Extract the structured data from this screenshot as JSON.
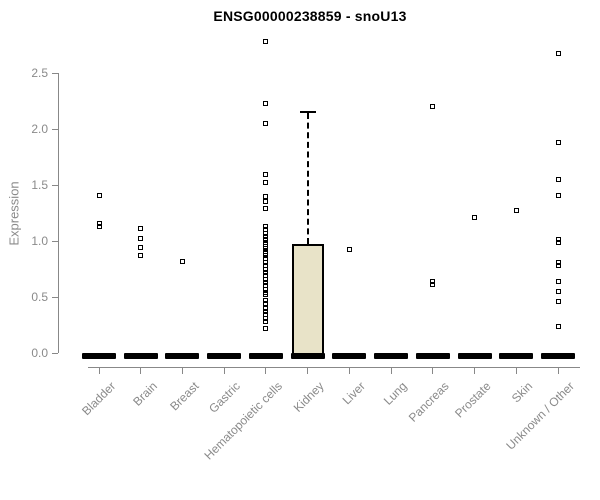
{
  "title": "ENSG00000238859 - snoU13",
  "axes": {
    "y_label": "Expression",
    "y_ticks": [
      "0.0",
      "0.5",
      "1.0",
      "1.5",
      "2.0",
      "2.5"
    ],
    "x_categories": [
      "Bladder",
      "Brain",
      "Breast",
      "Gastric",
      "Hematopoietic cells",
      "Kidney",
      "Liver",
      "Lung",
      "Pancreas",
      "Prostate",
      "Skin",
      "Unknown / Other"
    ]
  },
  "chart_data": {
    "type": "boxplot",
    "title": "ENSG00000238859 - snoU13",
    "xlabel": "",
    "ylabel": "Expression",
    "ylim": [
      0,
      2.8
    ],
    "grid": false,
    "legend": false,
    "categories": [
      "Bladder",
      "Brain",
      "Breast",
      "Gastric",
      "Hematopoietic cells",
      "Kidney",
      "Liver",
      "Lung",
      "Pancreas",
      "Prostate",
      "Skin",
      "Unknown / Other"
    ],
    "series": [
      {
        "category": "Bladder",
        "median": 0,
        "q1": 0,
        "q3": 0,
        "whisker_low": 0,
        "whisker_high": 0,
        "outliers": [
          1.41,
          1.16,
          1.13
        ]
      },
      {
        "category": "Brain",
        "median": 0,
        "q1": 0,
        "q3": 0,
        "whisker_low": 0,
        "whisker_high": 0,
        "outliers": [
          1.11,
          1.02,
          0.94,
          0.87
        ]
      },
      {
        "category": "Breast",
        "median": 0,
        "q1": 0,
        "q3": 0,
        "whisker_low": 0,
        "whisker_high": 0,
        "outliers": [
          0.82
        ]
      },
      {
        "category": "Gastric",
        "median": 0,
        "q1": 0,
        "q3": 0,
        "whisker_low": 0,
        "whisker_high": 0,
        "outliers": []
      },
      {
        "category": "Hematopoietic cells",
        "median": 0,
        "q1": 0,
        "q3": 0,
        "whisker_low": 0,
        "whisker_high": 0,
        "outliers": [
          2.78,
          2.23,
          2.05,
          1.59,
          1.52,
          1.4,
          1.35,
          1.29,
          1.13,
          1.1,
          1.07,
          1.04,
          1.01,
          0.99,
          0.97,
          0.95,
          0.93,
          0.91,
          0.89,
          0.87,
          0.84,
          0.81,
          0.78,
          0.75,
          0.72,
          0.69,
          0.66,
          0.63,
          0.6,
          0.57,
          0.54,
          0.52,
          0.47,
          0.44,
          0.4,
          0.37,
          0.34,
          0.31,
          0.28,
          0.22
        ]
      },
      {
        "category": "Kidney",
        "median": 0,
        "q1": 0,
        "q3": 0.97,
        "whisker_low": 0,
        "whisker_high": 2.16,
        "outliers": []
      },
      {
        "category": "Liver",
        "median": 0,
        "q1": 0,
        "q3": 0,
        "whisker_low": 0,
        "whisker_high": 0,
        "outliers": [
          0.92
        ]
      },
      {
        "category": "Lung",
        "median": 0,
        "q1": 0,
        "q3": 0,
        "whisker_low": 0,
        "whisker_high": 0,
        "outliers": []
      },
      {
        "category": "Pancreas",
        "median": 0,
        "q1": 0,
        "q3": 0,
        "whisker_low": 0,
        "whisker_high": 0,
        "outliers": [
          2.2,
          0.64,
          0.61
        ]
      },
      {
        "category": "Prostate",
        "median": 0,
        "q1": 0,
        "q3": 0,
        "whisker_low": 0,
        "whisker_high": 0,
        "outliers": [
          1.21
        ]
      },
      {
        "category": "Skin",
        "median": 0,
        "q1": 0,
        "q3": 0,
        "whisker_low": 0,
        "whisker_high": 0,
        "outliers": [
          1.27
        ]
      },
      {
        "category": "Unknown / Other",
        "median": 0,
        "q1": 0,
        "q3": 0,
        "whisker_low": 0,
        "whisker_high": 0,
        "outliers": [
          2.67,
          1.88,
          1.55,
          1.41,
          1.01,
          0.99,
          0.81,
          0.78,
          0.64,
          0.55,
          0.46,
          0.24
        ]
      }
    ],
    "colors": {
      "box_fill": "#E8E3C8",
      "box_border": "#000000",
      "point": "#000000",
      "axis": "#888888",
      "tick_label": "#8a8a8a",
      "title": "#000000"
    }
  }
}
